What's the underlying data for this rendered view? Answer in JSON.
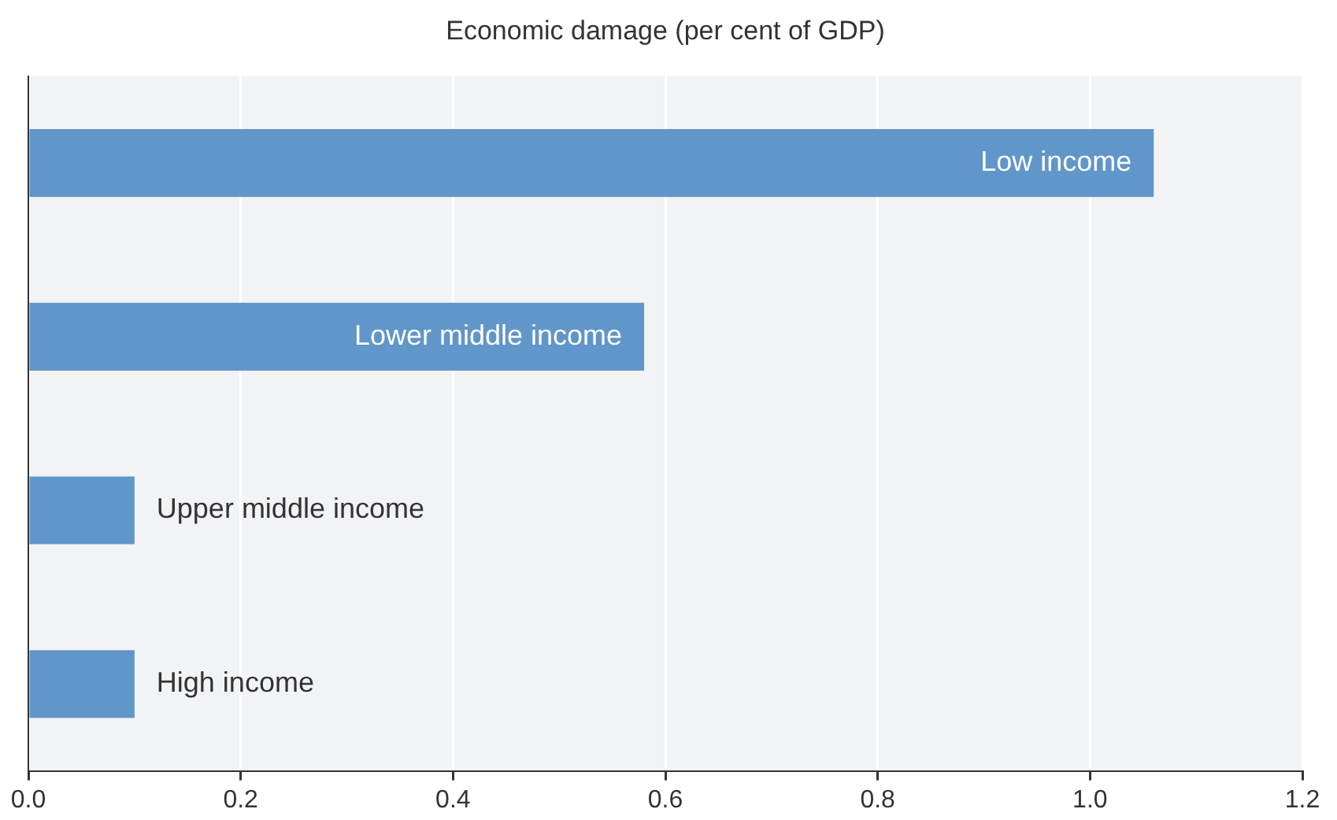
{
  "chart_data": {
    "type": "bar",
    "orientation": "horizontal",
    "title": "Economic damage (per cent of GDP)",
    "categories": [
      "Low income",
      "Lower middle income",
      "Upper middle income",
      "High income"
    ],
    "values": [
      1.06,
      0.58,
      0.1,
      0.1
    ],
    "color": "#6096c9",
    "xlim": [
      0,
      1.2
    ],
    "xticks": [
      {
        "value": 0,
        "label": "0.0"
      },
      {
        "value": 0.2,
        "label": "0.2"
      },
      {
        "value": 0.4,
        "label": "0.4"
      },
      {
        "value": 0.6,
        "label": "0.6"
      },
      {
        "value": 0.8,
        "label": "0.8"
      },
      {
        "value": 1,
        "label": "1.0"
      },
      {
        "value": 1.2,
        "label": "1.2"
      }
    ],
    "grid": "x",
    "legend": false,
    "tick_labels": "x"
  }
}
